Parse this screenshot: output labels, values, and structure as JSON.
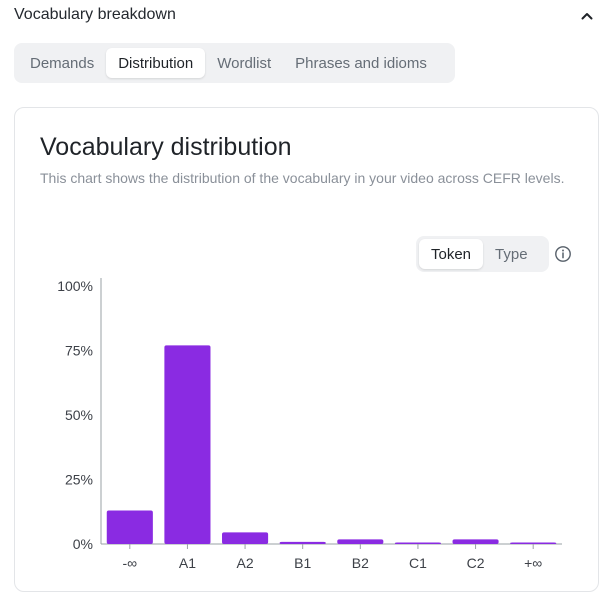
{
  "section": {
    "title": "Vocabulary breakdown",
    "collapse_icon": "chevron-up-icon"
  },
  "tabs": [
    {
      "label": "Demands",
      "active": false
    },
    {
      "label": "Distribution",
      "active": true
    },
    {
      "label": "Wordlist",
      "active": false
    },
    {
      "label": "Phrases and idioms",
      "active": false
    }
  ],
  "card": {
    "title": "Vocabulary distribution",
    "description": "This chart shows the distribution of the vocabulary in your video across CEFR levels."
  },
  "toggle": {
    "options": [
      {
        "label": "Token",
        "active": true
      },
      {
        "label": "Type",
        "active": false
      }
    ],
    "info_icon": "info-icon"
  },
  "colors": {
    "bar": "#8a2be2",
    "axis": "#9aa0a6"
  },
  "chart_data": {
    "type": "bar",
    "title": "",
    "xlabel": "",
    "ylabel": "",
    "categories": [
      "-∞",
      "A1",
      "A2",
      "B1",
      "B2",
      "C1",
      "C2",
      "+∞"
    ],
    "values": [
      13,
      77,
      4.5,
      0.8,
      1.8,
      0.3,
      1.8,
      0.4
    ],
    "ylim": [
      0,
      100
    ],
    "yticks": [
      "0%",
      "25%",
      "50%",
      "75%",
      "100%"
    ],
    "grid": false
  }
}
